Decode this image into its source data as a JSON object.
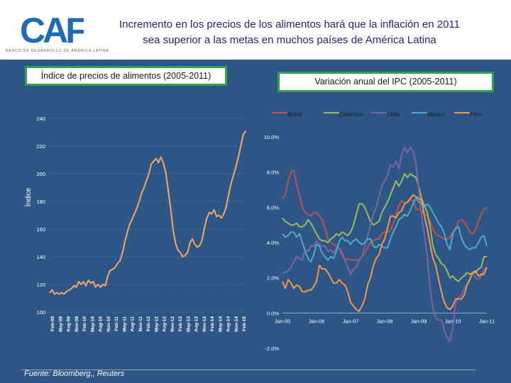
{
  "header": {
    "logo_text": "CAF",
    "logo_subtitle": "BANCO DE DESARROLLO DE AMÉRICA LATINA",
    "title_line1": "Incremento en los precios de los alimentos hará que la inflación en 2011",
    "title_line2": "sea superior a las metas en muchos países de América Latina",
    "brand_colors": {
      "blue": "#1f6cb3",
      "green": "#8cc63f",
      "title": "#2a1f78"
    }
  },
  "panel": {
    "background": "#2d5585",
    "box_border": "#2fa24a"
  },
  "footer": {
    "source": "Fuente: Bloomberg,, Reuters"
  },
  "chart_data": [
    {
      "type": "line",
      "title": "Índice de precios de alimentos (2005-2011)",
      "ylabel": "Índice",
      "ylim": [
        100,
        240
      ],
      "yticks": [
        "100",
        "120",
        "140",
        "160",
        "180",
        "200",
        "220",
        "240"
      ],
      "xticks": [
        "Feb-09",
        "May-09",
        "Aug-09",
        "Nov-09",
        "Feb-10",
        "May-10",
        "Aug-10",
        "Nov-10",
        "Feb-11",
        "May-11",
        "Aug-11",
        "Nov-11",
        "Feb-12",
        "May-12",
        "Aug-12",
        "Nov-12",
        "Feb-13",
        "May-13",
        "Aug-13",
        "Nov-13",
        "Feb-14",
        "May-14",
        "Aug-14",
        "Nov-14",
        "Feb-15"
      ],
      "series": [
        {
          "name": "Índice",
          "color": "#f5a860",
          "values": [
            114,
            116,
            113,
            114,
            113,
            114,
            113,
            115,
            116,
            117,
            119,
            118,
            122,
            120,
            122,
            119,
            123,
            121,
            122,
            118,
            120,
            118,
            120,
            119,
            126,
            130,
            131,
            132,
            135,
            137,
            142,
            150,
            157,
            163,
            167,
            171,
            175,
            180,
            186,
            190,
            195,
            200,
            207,
            209,
            211,
            208,
            212,
            208,
            201,
            188,
            175,
            160,
            150,
            145,
            143,
            140,
            141,
            143,
            150,
            153,
            149,
            147,
            148,
            152,
            161,
            168,
            172,
            171,
            174,
            169,
            170,
            168,
            171,
            176,
            185,
            193,
            199,
            205,
            212,
            220,
            228,
            231
          ]
        }
      ]
    },
    {
      "type": "line",
      "title": "Variación anual del IPC (2005-2011)",
      "ylim": [
        -2,
        10
      ],
      "yticks": [
        "-2.0%",
        "0.0%",
        "2.0%",
        "4.0%",
        "6.0%",
        "8.0%",
        "10.0%"
      ],
      "xticks": [
        "Jan-05",
        "Jan-06",
        "Jan-07",
        "Jan-08",
        "Jan-09",
        "Jan-10",
        "Jan-11"
      ],
      "x_range": [
        2005.0,
        2011.0
      ],
      "legend": {
        "position": "top"
      },
      "series": [
        {
          "name": "Brazil",
          "color": "#c0504d",
          "x": [
            2005.0,
            2005.083,
            2005.167,
            2005.25,
            2005.333,
            2005.417,
            2005.5,
            2005.583,
            2005.667,
            2005.75,
            2005.833,
            2005.917,
            2006.0,
            2006.083,
            2006.167,
            2006.25,
            2006.333,
            2006.417,
            2006.5,
            2006.583,
            2006.667,
            2006.75,
            2006.833,
            2006.917,
            2007.0,
            2007.083,
            2007.167,
            2007.25,
            2007.333,
            2007.417,
            2007.5,
            2007.583,
            2007.667,
            2007.75,
            2007.833,
            2007.917,
            2008.0,
            2008.083,
            2008.167,
            2008.25,
            2008.333,
            2008.417,
            2008.5,
            2008.583,
            2008.667,
            2008.75,
            2008.833,
            2008.917,
            2009.0,
            2009.083,
            2009.167,
            2009.25,
            2009.333,
            2009.417,
            2009.5,
            2009.583,
            2009.667,
            2009.75,
            2009.833,
            2009.917,
            2010.0,
            2010.083,
            2010.167,
            2010.25,
            2010.333,
            2010.417,
            2010.5,
            2010.583,
            2010.667,
            2010.75,
            2010.833,
            2010.917,
            2011.0
          ],
          "values": [
            6.5,
            6.7,
            7.5,
            8.0,
            8.1,
            7.3,
            6.7,
            6.0,
            5.7,
            5.6,
            5.5,
            5.7,
            5.7,
            5.5,
            5.3,
            4.8,
            4.2,
            4.0,
            3.9,
            3.8,
            3.7,
            3.3,
            3.0,
            3.1,
            3.0,
            3.0,
            3.0,
            3.0,
            3.2,
            3.4,
            3.7,
            4.0,
            4.1,
            4.2,
            4.2,
            4.5,
            4.6,
            4.6,
            4.7,
            5.0,
            5.6,
            6.1,
            6.4,
            6.2,
            6.3,
            6.4,
            6.4,
            5.9,
            5.9,
            5.8,
            5.6,
            5.5,
            5.2,
            4.8,
            4.5,
            4.4,
            4.3,
            4.2,
            4.2,
            4.3,
            4.6,
            4.8,
            5.2,
            5.3,
            5.2,
            4.9,
            4.6,
            4.5,
            4.7,
            5.2,
            5.6,
            5.9,
            6.0
          ]
        },
        {
          "name": "Colombia",
          "color": "#9bbb59",
          "x": [
            2005.0,
            2005.083,
            2005.167,
            2005.25,
            2005.333,
            2005.417,
            2005.5,
            2005.583,
            2005.667,
            2005.75,
            2005.833,
            2005.917,
            2006.0,
            2006.083,
            2006.167,
            2006.25,
            2006.333,
            2006.417,
            2006.5,
            2006.583,
            2006.667,
            2006.75,
            2006.833,
            2006.917,
            2007.0,
            2007.083,
            2007.167,
            2007.25,
            2007.333,
            2007.417,
            2007.5,
            2007.583,
            2007.667,
            2007.75,
            2007.833,
            2007.917,
            2008.0,
            2008.083,
            2008.167,
            2008.25,
            2008.333,
            2008.417,
            2008.5,
            2008.583,
            2008.667,
            2008.75,
            2008.833,
            2008.917,
            2009.0,
            2009.083,
            2009.167,
            2009.25,
            2009.333,
            2009.417,
            2009.5,
            2009.583,
            2009.667,
            2009.75,
            2009.833,
            2009.917,
            2010.0,
            2010.083,
            2010.167,
            2010.25,
            2010.333,
            2010.417,
            2010.5,
            2010.583,
            2010.667,
            2010.75,
            2010.833,
            2010.917,
            2011.0
          ],
          "values": [
            5.4,
            5.2,
            5.1,
            5.0,
            5.0,
            5.1,
            4.9,
            4.9,
            5.0,
            5.3,
            5.1,
            4.8,
            4.5,
            4.2,
            4.1,
            4.1,
            4.0,
            4.2,
            4.3,
            4.5,
            4.4,
            4.6,
            4.5,
            4.4,
            4.6,
            5.0,
            5.6,
            6.2,
            6.2,
            6.0,
            5.6,
            5.2,
            5.0,
            5.1,
            5.2,
            5.7,
            6.0,
            6.3,
            6.7,
            7.1,
            7.5,
            7.2,
            7.5,
            7.9,
            7.7,
            7.9,
            7.8,
            7.7,
            7.2,
            6.5,
            6.1,
            5.7,
            4.9,
            3.8,
            3.3,
            3.1,
            2.8,
            2.7,
            2.4,
            2.0,
            2.1,
            1.9,
            1.8,
            2.0,
            2.1,
            2.3,
            2.2,
            2.3,
            2.3,
            2.5,
            2.6,
            3.2,
            3.2
          ]
        },
        {
          "name": "Chile",
          "color": "#8064a2",
          "x": [
            2005.0,
            2005.083,
            2005.167,
            2005.25,
            2005.333,
            2005.417,
            2005.5,
            2005.583,
            2005.667,
            2005.75,
            2005.833,
            2005.917,
            2006.0,
            2006.083,
            2006.167,
            2006.25,
            2006.333,
            2006.417,
            2006.5,
            2006.583,
            2006.667,
            2006.75,
            2006.833,
            2006.917,
            2007.0,
            2007.083,
            2007.167,
            2007.25,
            2007.333,
            2007.417,
            2007.5,
            2007.583,
            2007.667,
            2007.75,
            2007.833,
            2007.917,
            2008.0,
            2008.083,
            2008.167,
            2008.25,
            2008.333,
            2008.417,
            2008.5,
            2008.583,
            2008.667,
            2008.75,
            2008.833,
            2008.917,
            2009.0,
            2009.083,
            2009.167,
            2009.25,
            2009.333,
            2009.417,
            2009.5,
            2009.583,
            2009.667,
            2009.75,
            2009.833,
            2009.917,
            2010.0,
            2010.083,
            2010.167,
            2010.25,
            2010.333,
            2010.417,
            2010.5,
            2010.583,
            2010.667,
            2010.75,
            2010.833,
            2010.917,
            2011.0
          ],
          "values": [
            2.3,
            2.3,
            2.4,
            2.6,
            2.9,
            3.2,
            3.1,
            3.0,
            3.6,
            3.5,
            3.8,
            3.8,
            4.1,
            3.9,
            3.8,
            3.8,
            3.5,
            3.6,
            3.4,
            3.7,
            3.7,
            3.4,
            3.0,
            2.6,
            2.2,
            2.5,
            2.6,
            3.0,
            3.2,
            3.8,
            4.4,
            5.0,
            5.6,
            6.0,
            6.6,
            7.2,
            7.5,
            7.8,
            8.4,
            8.3,
            8.6,
            8.2,
            9.0,
            9.4,
            9.1,
            9.4,
            9.2,
            8.5,
            7.1,
            5.5,
            4.4,
            3.2,
            1.4,
            0.3,
            -0.3,
            -0.4,
            -0.4,
            -1.0,
            -1.4,
            -1.6,
            -0.8,
            0.5,
            0.9,
            1.0,
            1.4,
            1.6,
            1.9,
            2.3,
            2.0,
            1.9,
            2.1,
            2.5,
            2.6
          ]
        },
        {
          "name": "Mexico",
          "color": "#4bacc6",
          "x": [
            2005.0,
            2005.083,
            2005.167,
            2005.25,
            2005.333,
            2005.417,
            2005.5,
            2005.583,
            2005.667,
            2005.75,
            2005.833,
            2005.917,
            2006.0,
            2006.083,
            2006.167,
            2006.25,
            2006.333,
            2006.417,
            2006.5,
            2006.583,
            2006.667,
            2006.75,
            2006.833,
            2006.917,
            2007.0,
            2007.083,
            2007.167,
            2007.25,
            2007.333,
            2007.417,
            2007.5,
            2007.583,
            2007.667,
            2007.75,
            2007.833,
            2007.917,
            2008.0,
            2008.083,
            2008.167,
            2008.25,
            2008.333,
            2008.417,
            2008.5,
            2008.583,
            2008.667,
            2008.75,
            2008.833,
            2008.917,
            2009.0,
            2009.083,
            2009.167,
            2009.25,
            2009.333,
            2009.417,
            2009.5,
            2009.583,
            2009.667,
            2009.75,
            2009.833,
            2009.917,
            2010.0,
            2010.083,
            2010.167,
            2010.25,
            2010.333,
            2010.417,
            2010.5,
            2010.583,
            2010.667,
            2010.75,
            2010.833,
            2010.917,
            2011.0
          ],
          "values": [
            4.5,
            4.3,
            4.4,
            4.6,
            4.6,
            4.3,
            4.5,
            4.0,
            3.5,
            3.1,
            2.9,
            3.3,
            3.9,
            3.8,
            3.4,
            3.2,
            3.0,
            3.2,
            3.1,
            3.5,
            4.1,
            4.3,
            4.1,
            4.1,
            3.9,
            4.1,
            4.2,
            4.0,
            3.9,
            4.0,
            4.2,
            4.2,
            3.8,
            3.7,
            3.9,
            3.8,
            3.7,
            3.7,
            4.2,
            4.6,
            4.9,
            5.3,
            5.4,
            5.6,
            5.5,
            5.8,
            6.2,
            6.5,
            6.3,
            6.2,
            6.0,
            6.2,
            6.0,
            5.7,
            5.4,
            5.1,
            4.9,
            4.5,
            3.9,
            3.6,
            4.5,
            4.8,
            4.9,
            4.3,
            3.9,
            3.7,
            3.6,
            3.7,
            3.7,
            4.0,
            4.3,
            4.4,
            3.8
          ]
        },
        {
          "name": "Peru",
          "color": "#f79646",
          "x": [
            2005.0,
            2005.083,
            2005.167,
            2005.25,
            2005.333,
            2005.417,
            2005.5,
            2005.583,
            2005.667,
            2005.75,
            2005.833,
            2005.917,
            2006.0,
            2006.083,
            2006.167,
            2006.25,
            2006.333,
            2006.417,
            2006.5,
            2006.583,
            2006.667,
            2006.75,
            2006.833,
            2006.917,
            2007.0,
            2007.083,
            2007.167,
            2007.25,
            2007.333,
            2007.417,
            2007.5,
            2007.583,
            2007.667,
            2007.75,
            2007.833,
            2007.917,
            2008.0,
            2008.083,
            2008.167,
            2008.25,
            2008.333,
            2008.417,
            2008.5,
            2008.583,
            2008.667,
            2008.75,
            2008.833,
            2008.917,
            2009.0,
            2009.083,
            2009.167,
            2009.25,
            2009.333,
            2009.417,
            2009.5,
            2009.583,
            2009.667,
            2009.75,
            2009.833,
            2009.917,
            2010.0,
            2010.083,
            2010.167,
            2010.25,
            2010.333,
            2010.417,
            2010.5,
            2010.583,
            2010.667,
            2010.75,
            2010.833,
            2010.917,
            2011.0
          ],
          "values": [
            1.8,
            1.4,
            1.9,
            1.7,
            1.4,
            1.6,
            1.5,
            1.2,
            1.2,
            1.3,
            1.3,
            1.5,
            1.8,
            2.7,
            2.5,
            2.5,
            2.3,
            2.0,
            1.7,
            1.7,
            1.9,
            1.7,
            1.6,
            1.2,
            0.6,
            0.4,
            0.2,
            0.1,
            0.4,
            0.8,
            1.6,
            2.0,
            2.7,
            3.1,
            3.3,
            3.9,
            4.2,
            4.8,
            5.5,
            5.5,
            5.4,
            5.7,
            5.8,
            6.2,
            6.3,
            6.5,
            6.7,
            6.6,
            6.5,
            6.4,
            5.5,
            4.8,
            3.9,
            3.1,
            2.7,
            1.9,
            1.2,
            0.6,
            0.3,
            0.2,
            0.4,
            0.8,
            0.8,
            0.8,
            1.0,
            1.6,
            1.9,
            2.3,
            2.4,
            2.1,
            2.2,
            2.2,
            2.6
          ]
        }
      ]
    }
  ]
}
